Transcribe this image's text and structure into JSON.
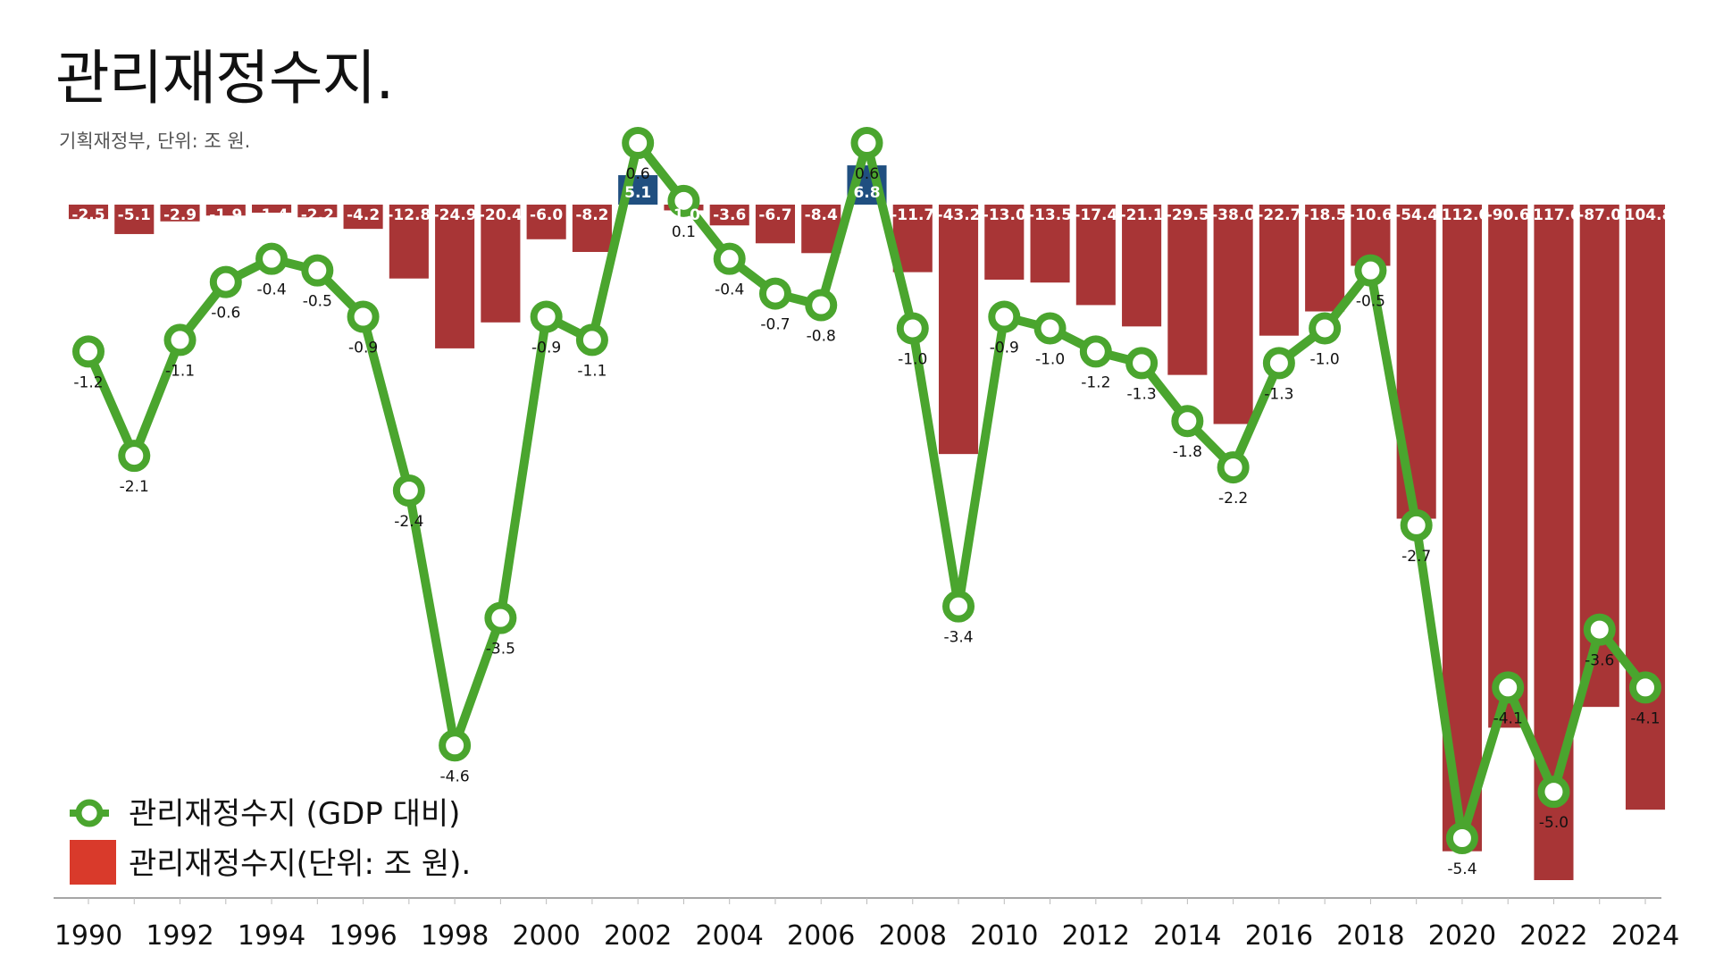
{
  "title": "관리재정수지.",
  "subtitle": "기획재정부, 단위: 조 원.",
  "chart_data": {
    "type": "bar",
    "x": [
      1990,
      1991,
      1992,
      1993,
      1994,
      1995,
      1996,
      1997,
      1998,
      1999,
      2000,
      2001,
      2002,
      2003,
      2004,
      2005,
      2006,
      2007,
      2008,
      2009,
      2010,
      2011,
      2012,
      2013,
      2014,
      2015,
      2016,
      2017,
      2018,
      2019,
      2020,
      2021,
      2022,
      2023,
      2024
    ],
    "x_tick_labels": [
      "1990",
      "1992",
      "1994",
      "1996",
      "1998",
      "2000",
      "2002",
      "2004",
      "2006",
      "2008",
      "2010",
      "2012",
      "2014",
      "2016",
      "2018",
      "2020",
      "2022",
      "2024"
    ],
    "series": [
      {
        "name": "관리재정수지(단위: 조 원).",
        "type": "bar",
        "values": [
          -2.5,
          -5.1,
          -2.9,
          -1.9,
          -1.4,
          -2.2,
          -4.2,
          -12.8,
          -24.9,
          -20.4,
          -6.0,
          -8.2,
          5.1,
          -1.0,
          -3.6,
          -6.7,
          -8.4,
          6.8,
          -11.7,
          -43.2,
          -13.0,
          -13.5,
          -17.4,
          -21.1,
          -29.5,
          -38.0,
          -22.7,
          -18.5,
          -10.6,
          -54.4,
          -112.0,
          -90.6,
          -117.0,
          -87.0,
          -104.8
        ],
        "labels": [
          "-2.5",
          "-5.1",
          "-2.9",
          "-1.9",
          "-1.4",
          "-2.2",
          "-4.2",
          "-12.8",
          "-24.9",
          "-20.4",
          "-6.0",
          "-8.2",
          "5.1",
          "-1.0",
          "-3.6",
          "-6.7",
          "-8.4",
          "6.8",
          "-11.7",
          "-43.2",
          "-13.0",
          "-13.5",
          "-17.4",
          "-21.1",
          "-29.5",
          "-38.0",
          "-22.7",
          "-18.5",
          "-10.6",
          "-54.4",
          "-112.0",
          "-90.6",
          "-117.0",
          "-87.0",
          "-104.8"
        ],
        "color_negative": "#a83536",
        "color_positive": "#204f80"
      },
      {
        "name": "관리재정수지 (GDP 대비)",
        "type": "line",
        "values": [
          -1.2,
          -2.1,
          -1.1,
          -0.6,
          -0.4,
          -0.5,
          -0.9,
          -2.4,
          -4.6,
          -3.5,
          -0.9,
          -1.1,
          0.6,
          0.1,
          -0.4,
          -0.7,
          -0.8,
          0.6,
          -1.0,
          -3.4,
          -0.9,
          -1.0,
          -1.2,
          -1.3,
          -1.8,
          -2.2,
          -1.3,
          -1.0,
          -0.5,
          -2.7,
          -5.4,
          -4.1,
          -5.0,
          -3.6,
          -4.1
        ],
        "labels": [
          "-1.2",
          "-2.1",
          "-1.1",
          "-0.6",
          "-0.4",
          "-0.5",
          "-0.9",
          "-2.4",
          "-4.6",
          "-3.5",
          "-0.9",
          "-1.1",
          "0.6",
          "0.1",
          "-0.4",
          "-0.7",
          "-0.8",
          "0.6",
          "-1.0",
          "-3.4",
          "-0.9",
          "-1.0",
          "-1.2",
          "-1.3",
          "-1.8",
          "-2.2",
          "-1.3",
          "-1.0",
          "-0.5",
          "-2.7",
          "-5.4",
          "-4.1",
          "-5.0",
          "-3.6",
          "-4.1"
        ],
        "color": "#4aa52e"
      }
    ],
    "bar_ylim": [
      -117,
      6.8
    ],
    "line_ylim": [
      -5.4,
      0.6
    ],
    "legend": {
      "placement": "bottom-left",
      "items": [
        {
          "label": "관리재정수지 (GDP 대비)",
          "marker": "line-circle",
          "color": "#4aa52e"
        },
        {
          "label": "관리재정수지(단위: 조 원).",
          "marker": "square",
          "color": "#d93a2b"
        }
      ]
    },
    "grid": false
  }
}
